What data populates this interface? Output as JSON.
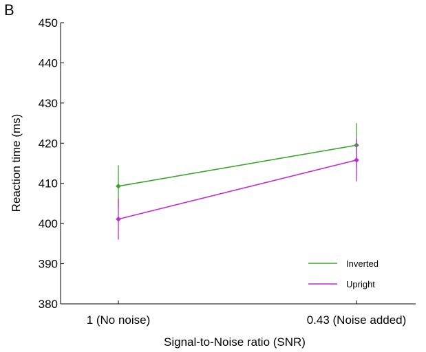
{
  "panel_label": "B",
  "chart_data": {
    "type": "line",
    "title": "",
    "xlabel": "Signal-to-Noise ratio (SNR)",
    "ylabel": "Reaction time (ms)",
    "categories": [
      "1 (No noise)",
      "0.43 (Noise added)"
    ],
    "ylim": [
      380,
      450
    ],
    "yticks": [
      380,
      390,
      400,
      410,
      420,
      430,
      440,
      450
    ],
    "grid": false,
    "legend_position": "bottom-right",
    "series": [
      {
        "name": "Inverted",
        "color": "#3ea32e",
        "values": [
          409.3,
          419.5
        ],
        "errors": [
          5.2,
          5.5
        ]
      },
      {
        "name": "Upright",
        "color": "#c02ad4",
        "values": [
          401.1,
          415.8
        ],
        "errors": [
          5.1,
          5.3
        ]
      }
    ]
  }
}
